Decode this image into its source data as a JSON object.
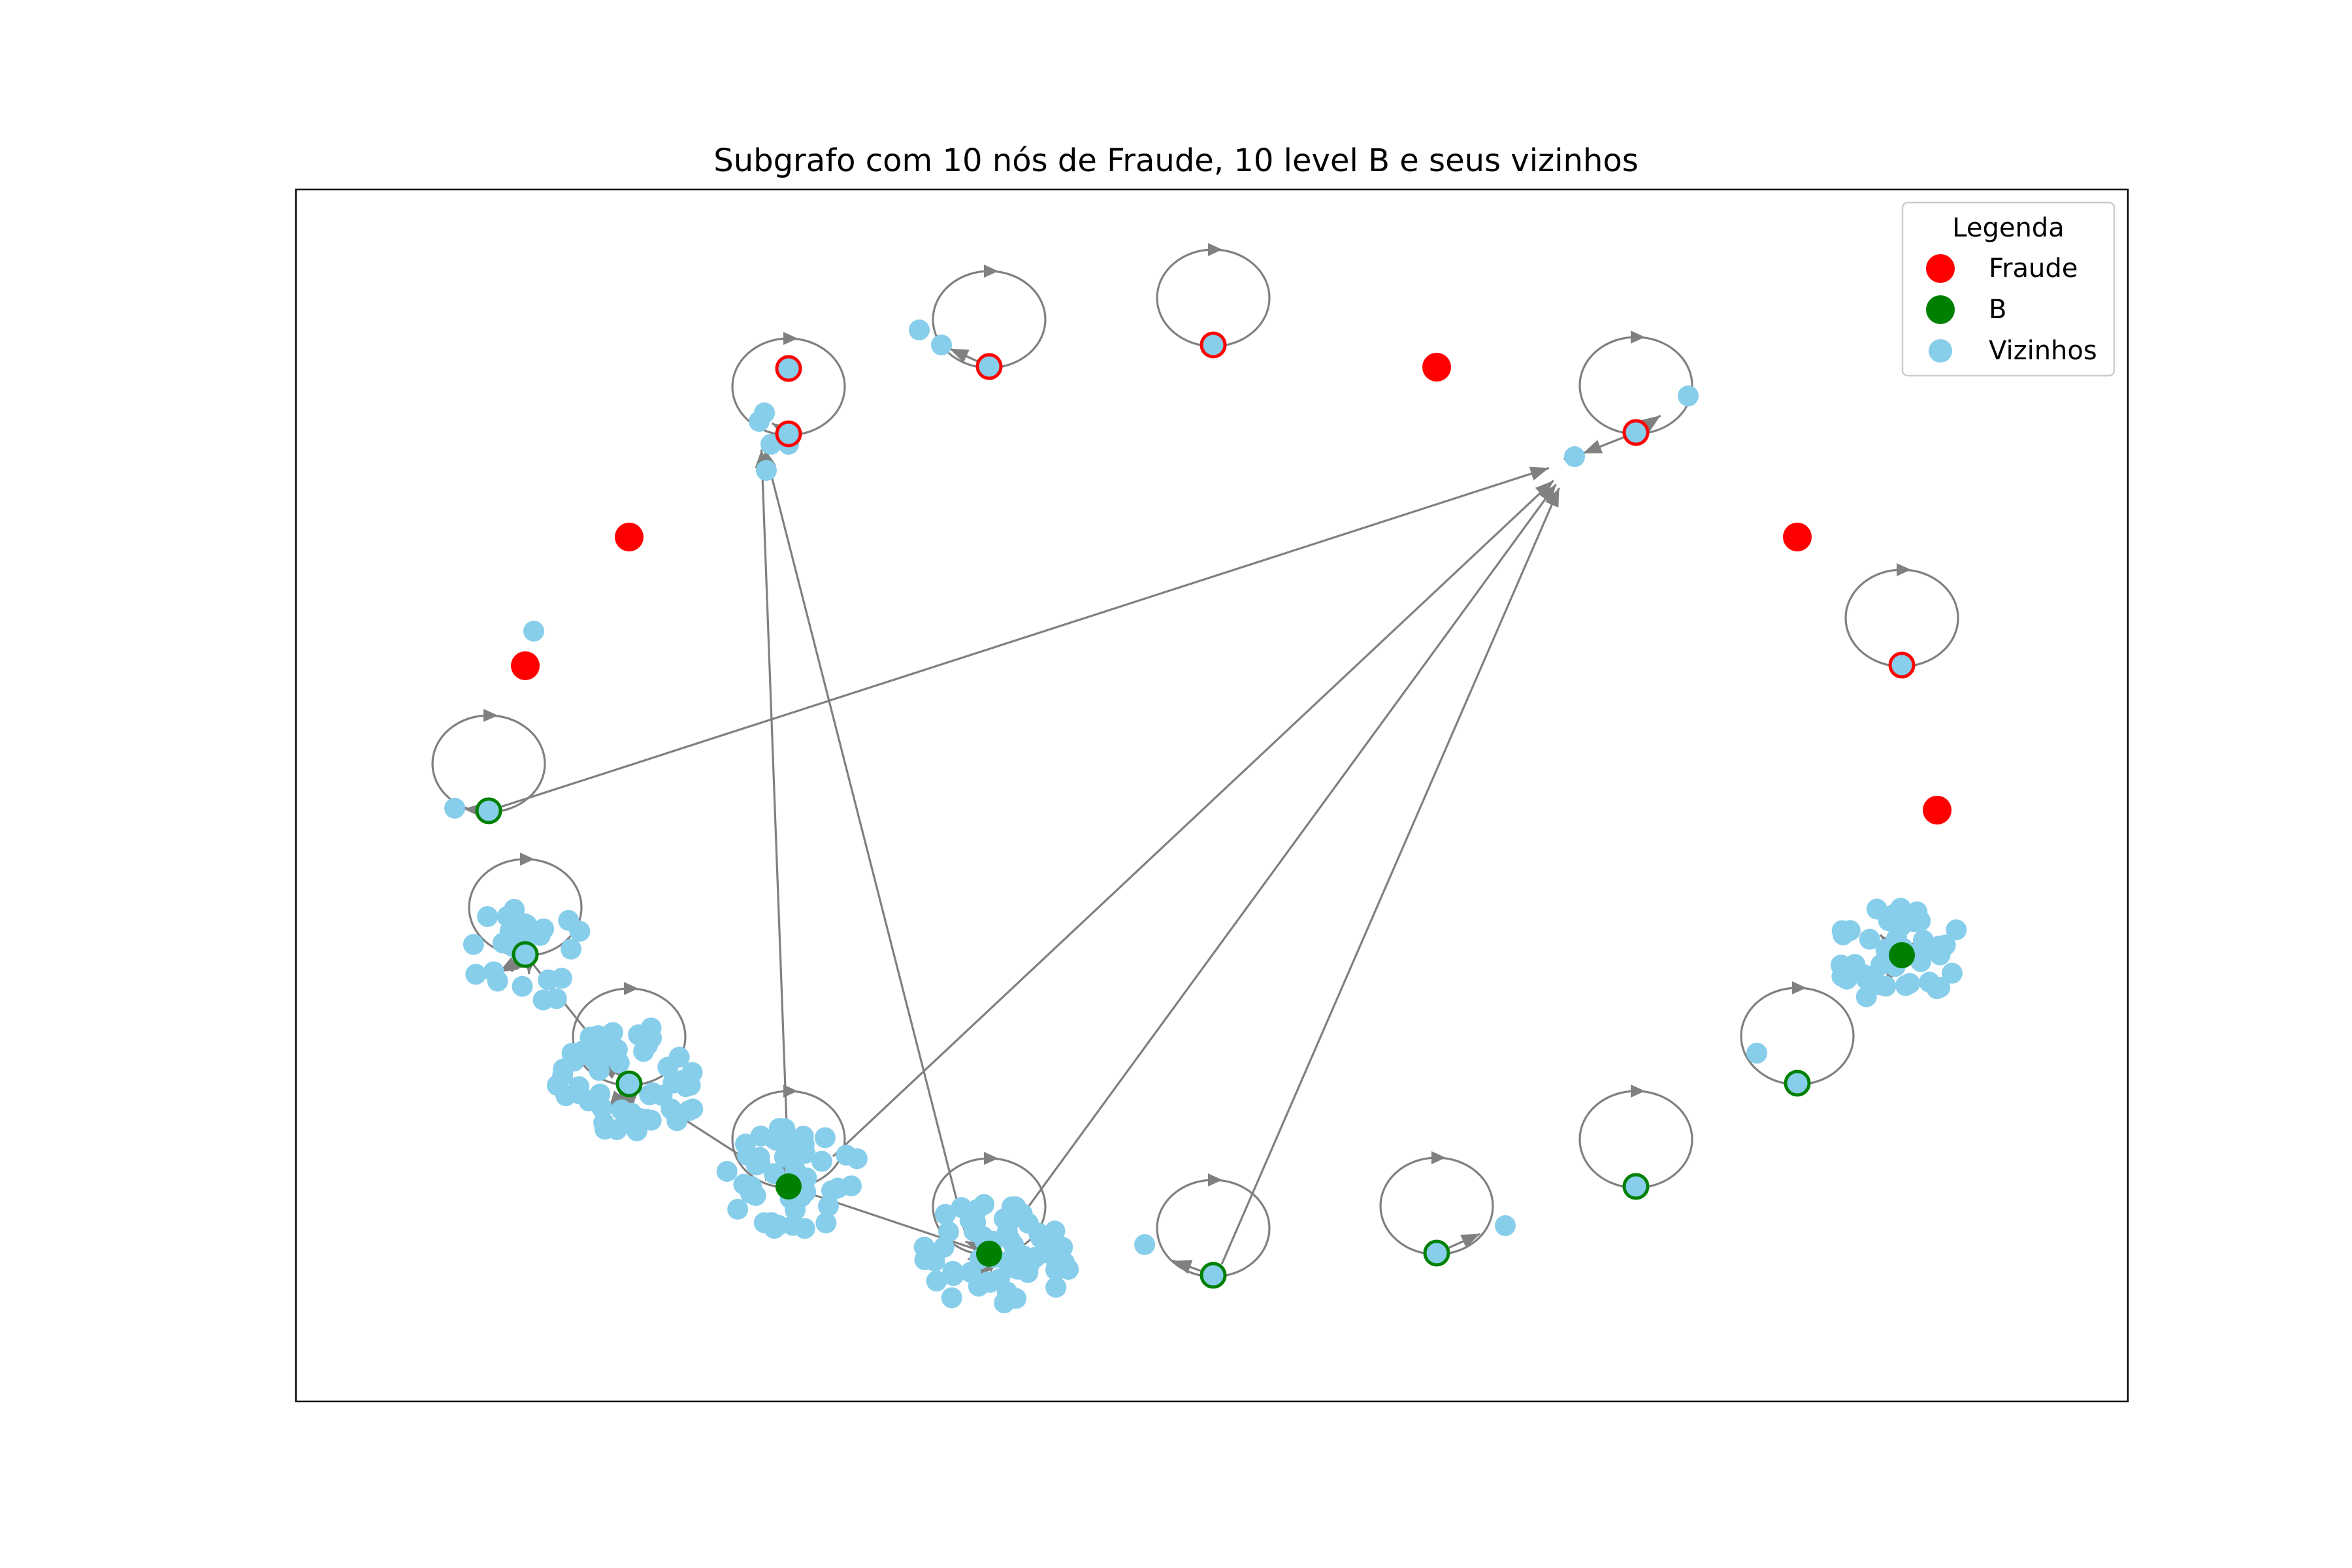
{
  "title": "Subgrafo com 10 nós de Fraude, 10 level B e seus vizinhos",
  "legend": {
    "title": "Legenda",
    "placement": "upper-right",
    "items": [
      {
        "label": "Fraude",
        "color": "#ff0000"
      },
      {
        "label": "B",
        "color": "#008000"
      },
      {
        "label": "Vizinhos",
        "color": "#87ceeb"
      }
    ]
  },
  "colors": {
    "fraude": "#ff0000",
    "b": "#008000",
    "vizinhos": "#87ceeb",
    "edge": "#808080"
  }
}
